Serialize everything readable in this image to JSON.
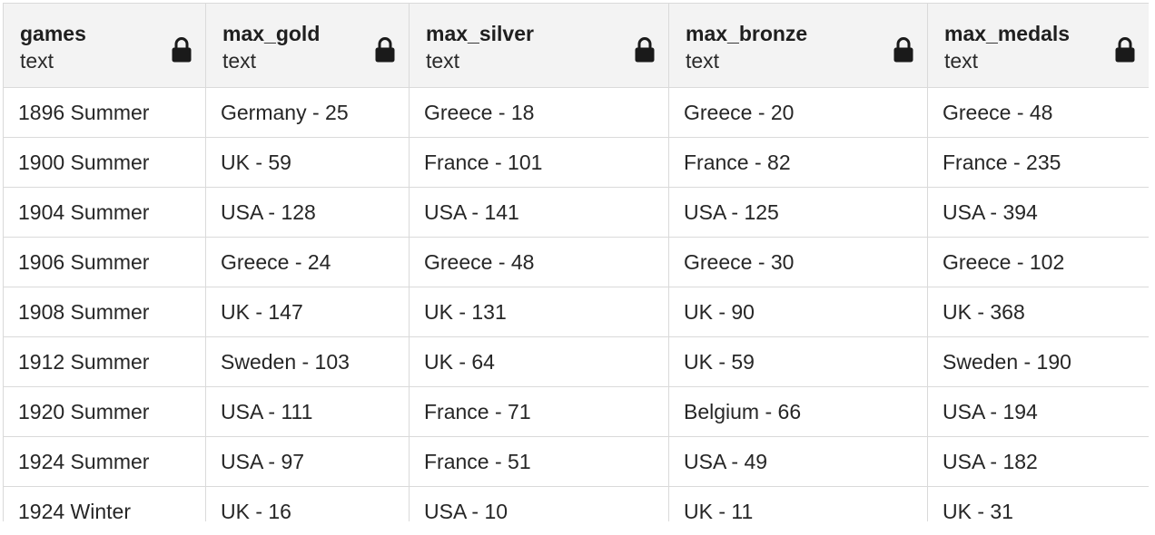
{
  "grid": {
    "columns": [
      {
        "name": "games",
        "type": "text",
        "icon": "lock-icon"
      },
      {
        "name": "max_gold",
        "type": "text",
        "icon": "lock-icon"
      },
      {
        "name": "max_silver",
        "type": "text",
        "icon": "lock-icon"
      },
      {
        "name": "max_bronze",
        "type": "text",
        "icon": "lock-icon"
      },
      {
        "name": "max_medals",
        "type": "text",
        "icon": "lock-icon"
      }
    ],
    "rows": [
      [
        "1896 Summer",
        "Germany - 25",
        "Greece - 18",
        "Greece - 20",
        "Greece - 48"
      ],
      [
        "1900 Summer",
        "UK - 59",
        "France - 101",
        "France - 82",
        "France - 235"
      ],
      [
        "1904 Summer",
        "USA - 128",
        "USA - 141",
        "USA - 125",
        "USA - 394"
      ],
      [
        "1906 Summer",
        "Greece - 24",
        "Greece - 48",
        "Greece - 30",
        "Greece - 102"
      ],
      [
        "1908 Summer",
        "UK - 147",
        "UK - 131",
        "UK - 90",
        "UK - 368"
      ],
      [
        "1912 Summer",
        "Sweden - 103",
        "UK - 64",
        "UK - 59",
        "Sweden - 190"
      ],
      [
        "1920 Summer",
        "USA - 111",
        "France - 71",
        "Belgium - 66",
        "USA - 194"
      ],
      [
        "1924 Summer",
        "USA - 97",
        "France - 51",
        "USA - 49",
        "USA - 182"
      ],
      [
        "1924 Winter",
        "UK - 16",
        "USA - 10",
        "UK - 11",
        "UK - 31"
      ]
    ],
    "colors": {
      "header_bg": "#f3f3f3",
      "border": "#dadada",
      "icon": "#1a1a1a"
    }
  }
}
